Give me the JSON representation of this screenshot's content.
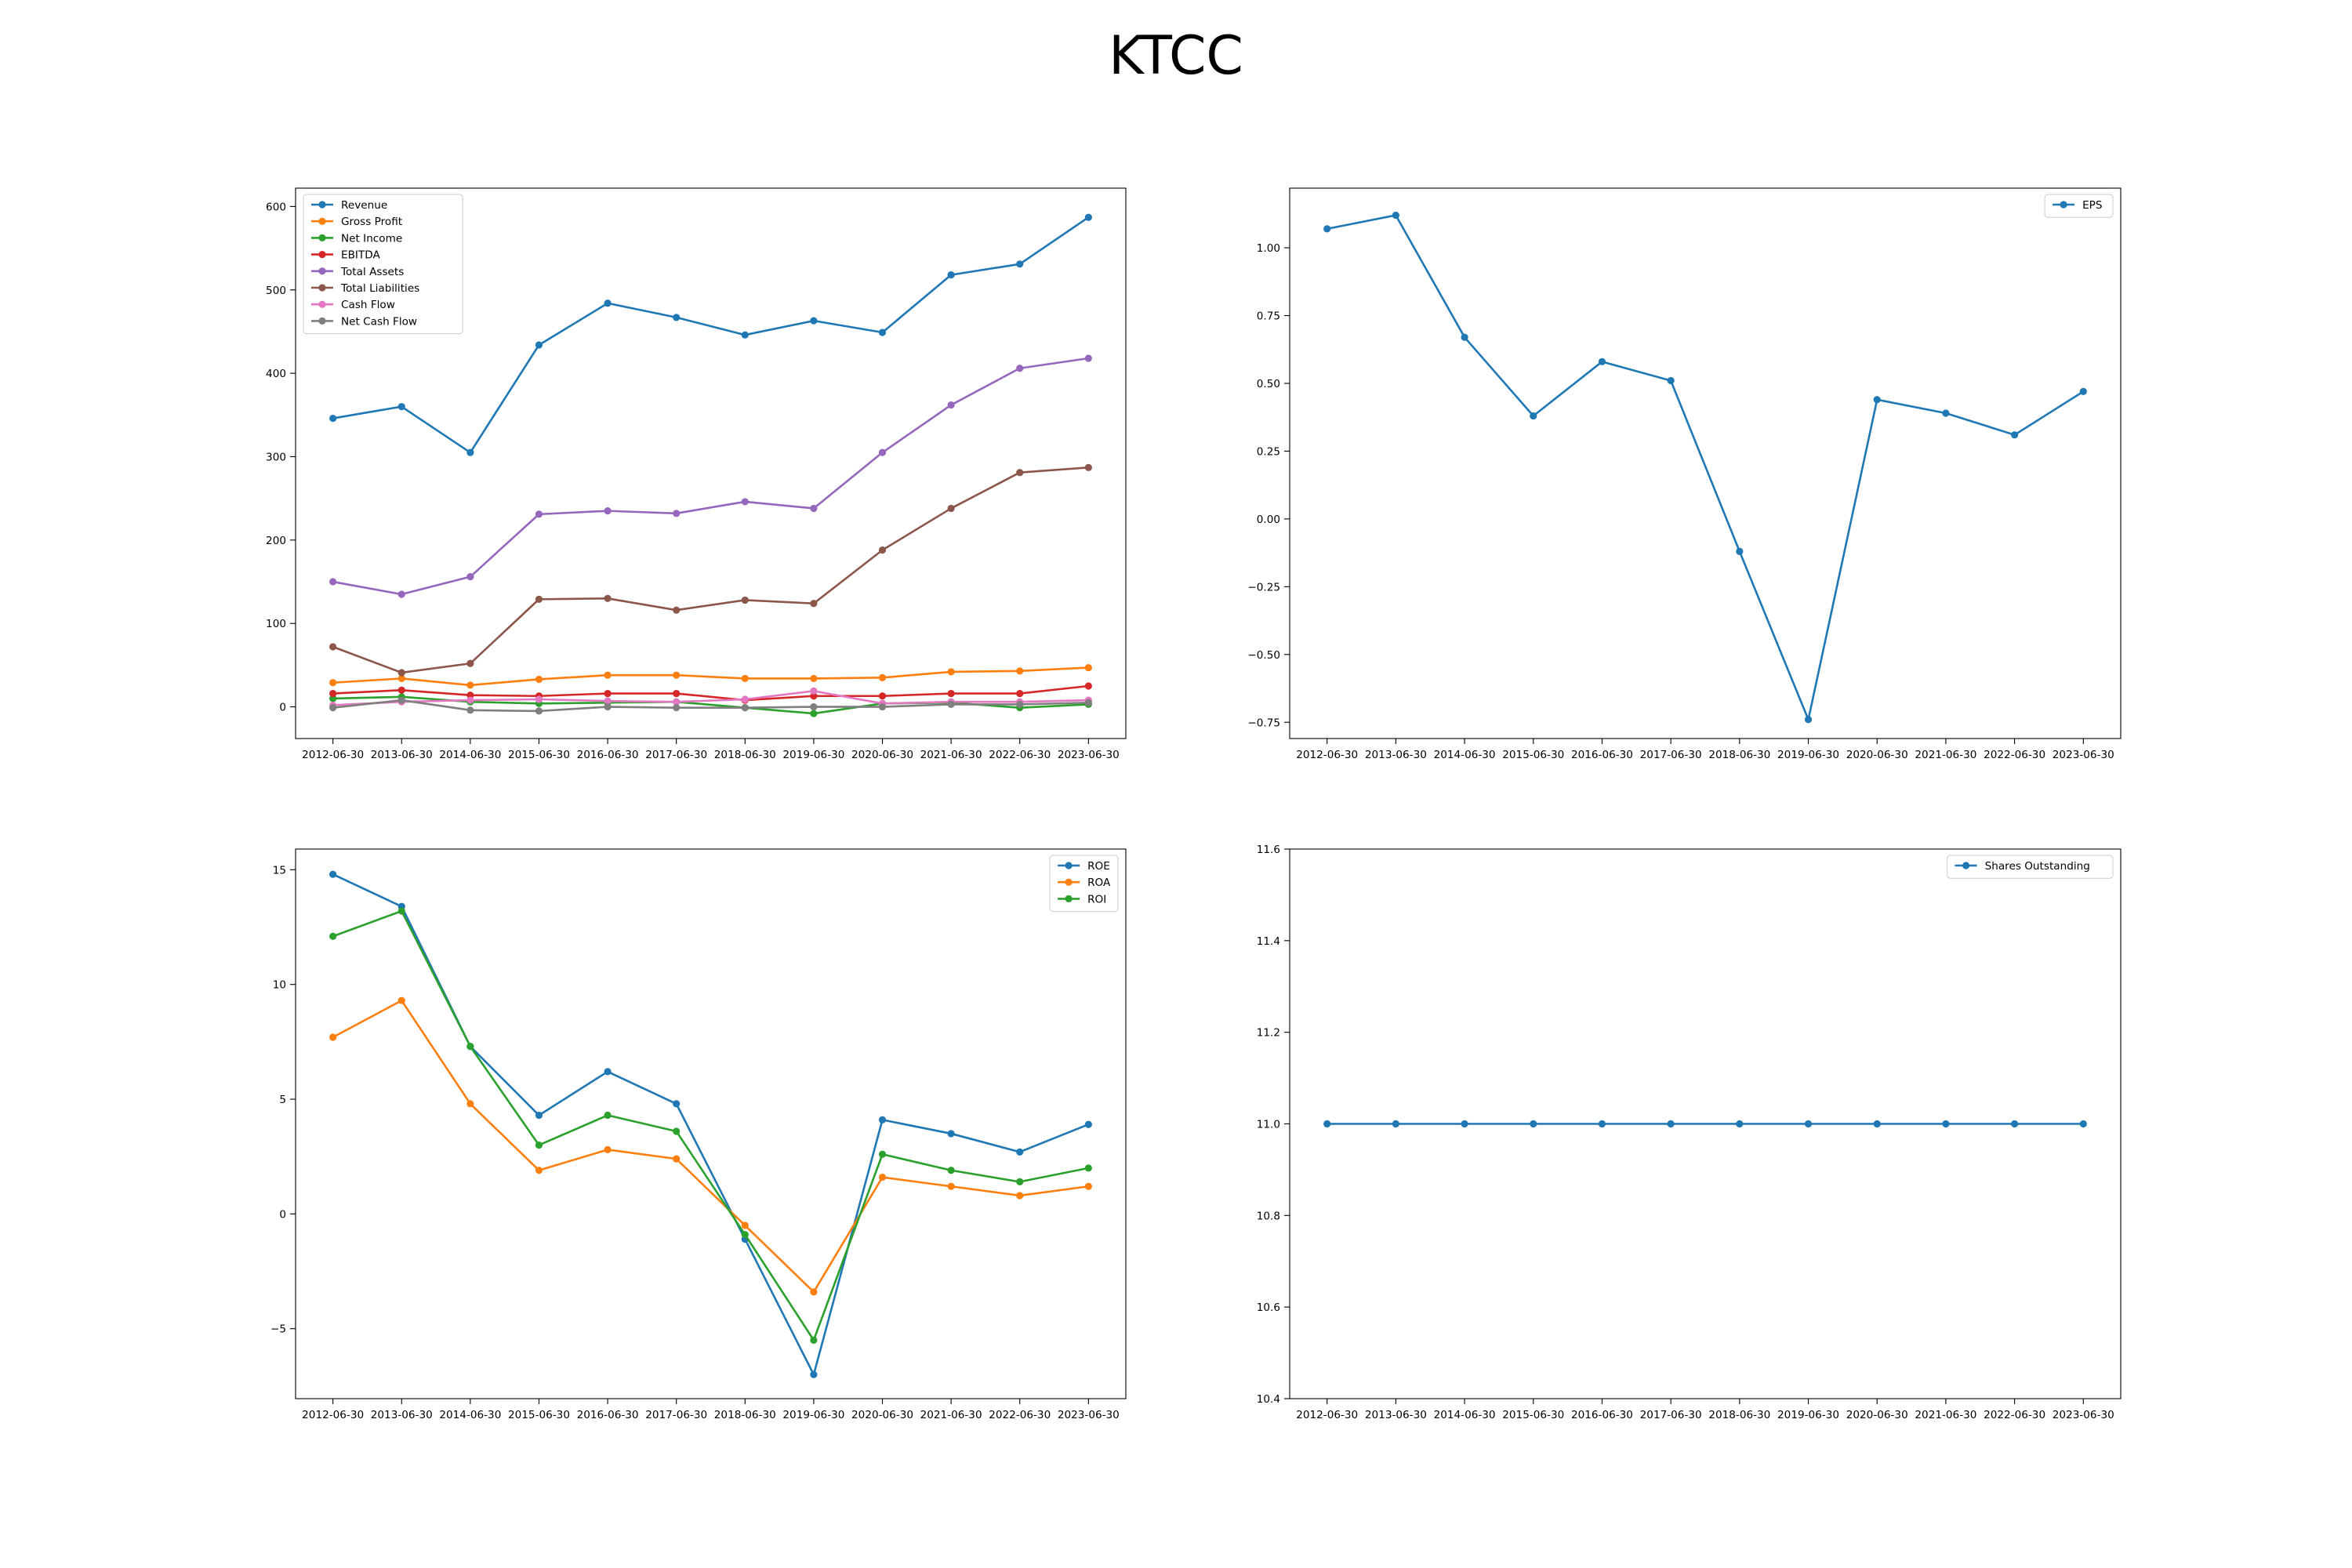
{
  "title": "KTCC",
  "chart_data": [
    {
      "type": "line",
      "x": [
        "2012-06-30",
        "2013-06-30",
        "2014-06-30",
        "2015-06-30",
        "2016-06-30",
        "2017-06-30",
        "2018-06-30",
        "2019-06-30",
        "2020-06-30",
        "2021-06-30",
        "2022-06-30",
        "2023-06-30"
      ],
      "ylim": [
        -38,
        622
      ],
      "yticks": [
        0,
        100,
        200,
        300,
        400,
        500,
        600
      ],
      "legend": "upper-left",
      "grid": false,
      "series": [
        {
          "name": "Revenue",
          "color": "#1f77b4",
          "values": [
            346,
            360,
            305,
            434,
            484,
            467,
            446,
            463,
            449,
            518,
            531,
            587
          ]
        },
        {
          "name": "Gross Profit",
          "color": "#ff7f0e",
          "values": [
            29,
            34,
            26,
            33,
            38,
            38,
            34,
            34,
            35,
            42,
            43,
            47
          ]
        },
        {
          "name": "Net Income",
          "color": "#2ca02c",
          "values": [
            10,
            12,
            6,
            4,
            5,
            6,
            -1,
            -8,
            4,
            5,
            -1,
            3
          ]
        },
        {
          "name": "EBITDA",
          "color": "#d62728",
          "values": [
            16,
            20,
            14,
            13,
            16,
            16,
            8,
            13,
            13,
            16,
            16,
            25
          ]
        },
        {
          "name": "Total Assets",
          "color": "#9467bd",
          "values": [
            150,
            135,
            156,
            231,
            235,
            232,
            246,
            238,
            305,
            362,
            406,
            418
          ]
        },
        {
          "name": "Total Liabilities",
          "color": "#8c564b",
          "values": [
            72,
            41,
            52,
            129,
            130,
            116,
            128,
            124,
            188,
            238,
            281,
            287
          ]
        },
        {
          "name": "Cash Flow",
          "color": "#e377c2",
          "values": [
            2,
            6,
            8,
            9,
            7,
            6,
            9,
            19,
            4,
            6,
            6,
            8
          ]
        },
        {
          "name": "Net Cash Flow",
          "color": "#7f7f7f",
          "values": [
            -1,
            8,
            -4,
            -5,
            0,
            -1,
            -1,
            0,
            0,
            3,
            3,
            5
          ]
        }
      ]
    },
    {
      "type": "line",
      "x": [
        "2012-06-30",
        "2013-06-30",
        "2014-06-30",
        "2015-06-30",
        "2016-06-30",
        "2017-06-30",
        "2018-06-30",
        "2019-06-30",
        "2020-06-30",
        "2021-06-30",
        "2022-06-30",
        "2023-06-30"
      ],
      "ylim": [
        -0.81,
        1.22
      ],
      "yticks": [
        -0.75,
        -0.5,
        -0.25,
        0.0,
        0.25,
        0.5,
        0.75,
        1.0
      ],
      "ytick_labels": [
        "−0.75",
        "−0.50",
        "−0.25",
        "0.00",
        "0.25",
        "0.50",
        "0.75",
        "1.00"
      ],
      "legend": "upper-right",
      "grid": false,
      "series": [
        {
          "name": "EPS",
          "color": "#1f77b4",
          "values": [
            1.07,
            1.12,
            0.67,
            0.38,
            0.58,
            0.51,
            -0.12,
            -0.74,
            0.44,
            0.39,
            0.31,
            0.47
          ]
        }
      ]
    },
    {
      "type": "line",
      "x": [
        "2012-06-30",
        "2013-06-30",
        "2014-06-30",
        "2015-06-30",
        "2016-06-30",
        "2017-06-30",
        "2018-06-30",
        "2019-06-30",
        "2020-06-30",
        "2021-06-30",
        "2022-06-30",
        "2023-06-30"
      ],
      "ylim": [
        -8.05,
        15.9
      ],
      "yticks": [
        -5,
        0,
        5,
        10,
        15
      ],
      "ytick_labels": [
        "−5",
        "0",
        "5",
        "10",
        "15"
      ],
      "legend": "upper-right",
      "grid": false,
      "series": [
        {
          "name": "ROE",
          "color": "#1f77b4",
          "values": [
            14.8,
            13.4,
            7.3,
            4.3,
            6.2,
            4.8,
            -1.1,
            -7.0,
            4.1,
            3.5,
            2.7,
            3.9
          ]
        },
        {
          "name": "ROA",
          "color": "#ff7f0e",
          "values": [
            7.7,
            9.3,
            4.8,
            1.9,
            2.8,
            2.4,
            -0.5,
            -3.4,
            1.6,
            1.2,
            0.8,
            1.2
          ]
        },
        {
          "name": "ROI",
          "color": "#2ca02c",
          "values": [
            12.1,
            13.2,
            7.3,
            3.0,
            4.3,
            3.6,
            -0.9,
            -5.5,
            2.6,
            1.9,
            1.4,
            2.0
          ]
        }
      ]
    },
    {
      "type": "line",
      "x": [
        "2012-06-30",
        "2013-06-30",
        "2014-06-30",
        "2015-06-30",
        "2016-06-30",
        "2017-06-30",
        "2018-06-30",
        "2019-06-30",
        "2020-06-30",
        "2021-06-30",
        "2022-06-30",
        "2023-06-30"
      ],
      "ylim": [
        10.4,
        11.6
      ],
      "yticks": [
        10.4,
        10.6,
        10.8,
        11.0,
        11.2,
        11.4,
        11.6
      ],
      "ytick_labels": [
        "10.4",
        "10.6",
        "10.8",
        "11.0",
        "11.2",
        "11.4",
        "11.6"
      ],
      "legend": "upper-right",
      "grid": false,
      "series": [
        {
          "name": "Shares Outstanding",
          "color": "#1f77b4",
          "values": [
            11,
            11,
            11,
            11,
            11,
            11,
            11,
            11,
            11,
            11,
            11,
            11
          ]
        }
      ]
    }
  ]
}
